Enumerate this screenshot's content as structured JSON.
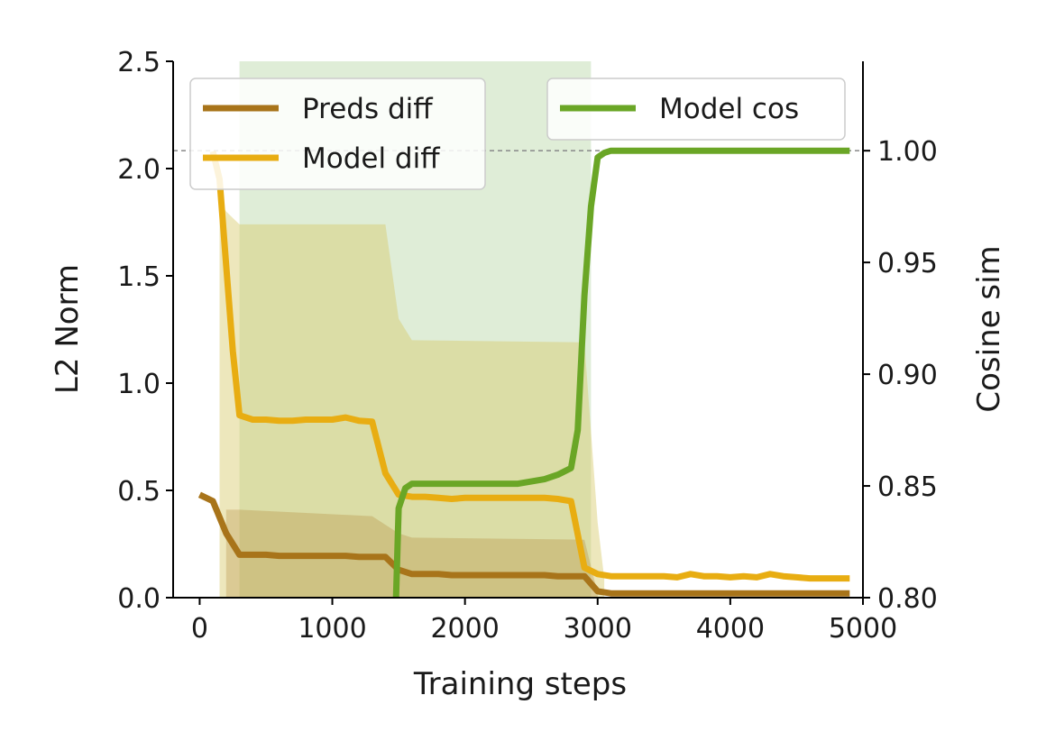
{
  "chart_data": {
    "type": "line",
    "xlabel": "Training steps",
    "ylabel_left": "L2 Norm",
    "ylabel_right": "Cosine sim",
    "xlim": [
      -200,
      5000
    ],
    "ylim_left": [
      0,
      2.5
    ],
    "ylim_right": [
      0.8,
      1.04
    ],
    "x_ticks": [
      0,
      1000,
      2000,
      3000,
      4000,
      5000
    ],
    "y_ticks_left": [
      0.0,
      0.5,
      1.0,
      1.5,
      2.0,
      2.5
    ],
    "y_ticks_right": [
      0.8,
      0.85,
      0.9,
      0.95,
      1.0
    ],
    "x_tick_labels": [
      "0",
      "1000",
      "2000",
      "3000",
      "4000",
      "5000"
    ],
    "y_tick_labels_left": [
      "0.0",
      "0.5",
      "1.0",
      "1.5",
      "2.0",
      "2.5"
    ],
    "y_tick_labels_right": [
      "0.80",
      "0.85",
      "0.90",
      "0.95",
      "1.00"
    ],
    "reference_line": {
      "axis": "right",
      "y": 1.0,
      "style": "dashed"
    },
    "series": [
      {
        "name": "Preds diff",
        "axis": "left",
        "color": "#a8741a",
        "x": [
          0,
          100,
          200,
          300,
          400,
          500,
          600,
          700,
          800,
          900,
          1000,
          1100,
          1200,
          1300,
          1400,
          1500,
          1600,
          1700,
          1800,
          1900,
          2000,
          2100,
          2200,
          2300,
          2400,
          2500,
          2600,
          2700,
          2800,
          2900,
          3000,
          3100,
          3200,
          3300,
          3400,
          3500,
          3600,
          3700,
          3800,
          3900,
          4000,
          4100,
          4200,
          4300,
          4400,
          4500,
          4600,
          4700,
          4800,
          4900
        ],
        "values": [
          0.48,
          0.45,
          0.3,
          0.2,
          0.2,
          0.2,
          0.195,
          0.195,
          0.195,
          0.195,
          0.195,
          0.195,
          0.19,
          0.19,
          0.19,
          0.13,
          0.11,
          0.11,
          0.11,
          0.105,
          0.105,
          0.105,
          0.105,
          0.105,
          0.105,
          0.105,
          0.105,
          0.1,
          0.1,
          0.1,
          0.03,
          0.02,
          0.02,
          0.02,
          0.02,
          0.02,
          0.02,
          0.02,
          0.02,
          0.02,
          0.02,
          0.02,
          0.02,
          0.02,
          0.02,
          0.02,
          0.02,
          0.02,
          0.02,
          0.02
        ],
        "band_x": [
          200,
          300,
          1300,
          1500,
          1600,
          2900,
          3000
        ],
        "band_lower": [
          0.0,
          0.0,
          0.0,
          0.0,
          0.0,
          0.0,
          0.0
        ],
        "band_upper": [
          0.41,
          0.41,
          0.38,
          0.3,
          0.28,
          0.27,
          0.02
        ]
      },
      {
        "name": "Model diff",
        "axis": "left",
        "color": "#e8ad12",
        "x": [
          100,
          150,
          200,
          250,
          300,
          400,
          500,
          600,
          700,
          800,
          900,
          1000,
          1100,
          1200,
          1300,
          1400,
          1500,
          1600,
          1700,
          1800,
          1900,
          2000,
          2100,
          2200,
          2300,
          2400,
          2500,
          2600,
          2700,
          2800,
          2900,
          3000,
          3100,
          3200,
          3300,
          3400,
          3500,
          3600,
          3700,
          3800,
          3900,
          4000,
          4100,
          4200,
          4300,
          4400,
          4500,
          4600,
          4700,
          4800,
          4900
        ],
        "values": [
          2.08,
          1.95,
          1.55,
          1.15,
          0.85,
          0.83,
          0.83,
          0.825,
          0.825,
          0.83,
          0.83,
          0.83,
          0.84,
          0.825,
          0.82,
          0.58,
          0.48,
          0.47,
          0.47,
          0.465,
          0.46,
          0.465,
          0.465,
          0.465,
          0.465,
          0.465,
          0.465,
          0.465,
          0.46,
          0.45,
          0.14,
          0.11,
          0.1,
          0.1,
          0.1,
          0.1,
          0.1,
          0.095,
          0.11,
          0.1,
          0.1,
          0.095,
          0.1,
          0.095,
          0.11,
          0.1,
          0.095,
          0.09,
          0.09,
          0.09,
          0.09
        ],
        "band_x": [
          150,
          200,
          300,
          1400,
          1500,
          1600,
          2900,
          3000,
          3050
        ],
        "band_lower": [
          0.0,
          0.0,
          0.0,
          0.0,
          0.0,
          0.0,
          0.0,
          0.0,
          0.0
        ],
        "band_upper": [
          1.85,
          1.8,
          1.74,
          1.74,
          1.3,
          1.2,
          1.19,
          0.35,
          0.09
        ]
      },
      {
        "name": "Model cos",
        "axis": "right",
        "color": "#6aa626",
        "x": [
          1480,
          1500,
          1550,
          1600,
          1700,
          1800,
          1900,
          2000,
          2100,
          2200,
          2300,
          2400,
          2500,
          2600,
          2700,
          2800,
          2850,
          2900,
          2950,
          3000,
          3050,
          3100,
          3200,
          3300,
          3400,
          3500,
          3600,
          3700,
          3800,
          3900,
          4000,
          4100,
          4200,
          4300,
          4400,
          4500,
          4600,
          4700,
          4800,
          4900
        ],
        "values": [
          0.8,
          0.84,
          0.849,
          0.851,
          0.851,
          0.851,
          0.851,
          0.851,
          0.851,
          0.851,
          0.851,
          0.851,
          0.852,
          0.853,
          0.855,
          0.858,
          0.875,
          0.935,
          0.975,
          0.997,
          0.999,
          1.0,
          1.0,
          1.0,
          1.0,
          1.0,
          1.0,
          1.0,
          1.0,
          1.0,
          1.0,
          1.0,
          1.0,
          1.0,
          1.0,
          1.0,
          1.0,
          1.0,
          1.0,
          1.0
        ],
        "band_x": [
          300,
          2950
        ],
        "band_lower": [
          0.8,
          0.8
        ],
        "band_upper": [
          1.04,
          1.04
        ]
      }
    ],
    "legends": [
      {
        "placement": "top-left",
        "entries": [
          "Preds diff",
          "Model diff"
        ]
      },
      {
        "placement": "top-right",
        "entries": [
          "Model cos"
        ]
      }
    ]
  }
}
